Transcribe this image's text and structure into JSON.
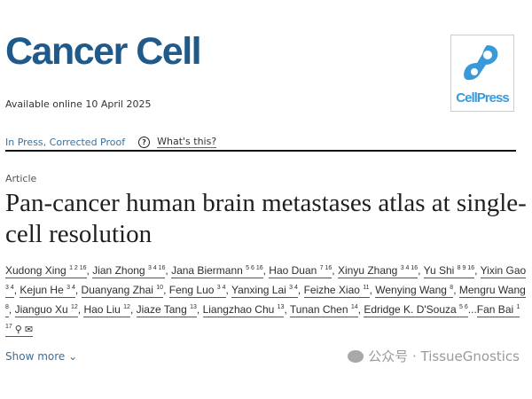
{
  "journal": {
    "name": "Cancer Cell",
    "publisher_logo": "CellPress"
  },
  "available": "Available online 10 April 2025",
  "status": {
    "label": "In Press, Corrected Proof",
    "help_icon": "?",
    "help_link": "What's this?"
  },
  "article_type": "Article",
  "title": "Pan-cancer human brain metastases atlas at single-cell resolution",
  "authors": [
    {
      "name": "Xudong Xing",
      "sup": "1 2 16"
    },
    {
      "name": "Jian Zhong",
      "sup": "3 4 16"
    },
    {
      "name": "Jana Biermann",
      "sup": "5 6 16"
    },
    {
      "name": "Hao Duan",
      "sup": "7 16"
    },
    {
      "name": "Xinyu Zhang",
      "sup": "3 4 16"
    },
    {
      "name": "Yu Shi",
      "sup": "8 9 16"
    },
    {
      "name": "Yixin Gao",
      "sup": "3 4"
    },
    {
      "name": "Kejun He",
      "sup": "3 4"
    },
    {
      "name": "Duanyang Zhai",
      "sup": "10"
    },
    {
      "name": "Feng Luo",
      "sup": "3 4"
    },
    {
      "name": "Yanxing Lai",
      "sup": "3 4"
    },
    {
      "name": "Feizhe Xiao",
      "sup": "11"
    },
    {
      "name": "Wenying Wang",
      "sup": "8"
    },
    {
      "name": "Mengru Wang",
      "sup": "8"
    },
    {
      "name": "Jianguo Xu",
      "sup": "12"
    },
    {
      "name": "Hao Liu",
      "sup": "12"
    },
    {
      "name": "Jiaze Tang",
      "sup": "13"
    },
    {
      "name": "Liangzhao Chu",
      "sup": "13"
    },
    {
      "name": "Tunan Chen",
      "sup": "14"
    },
    {
      "name": "Edridge K. D'Souza",
      "sup": "5 6"
    },
    {
      "name": "Fan Bai",
      "sup": "1 17"
    }
  ],
  "show_more": "Show more",
  "watermark": "公众号 · TissueGnostics",
  "colors": {
    "brand": "#1f5a8a",
    "link": "#3c6e9a",
    "cellpress": "#3a9ad9"
  }
}
